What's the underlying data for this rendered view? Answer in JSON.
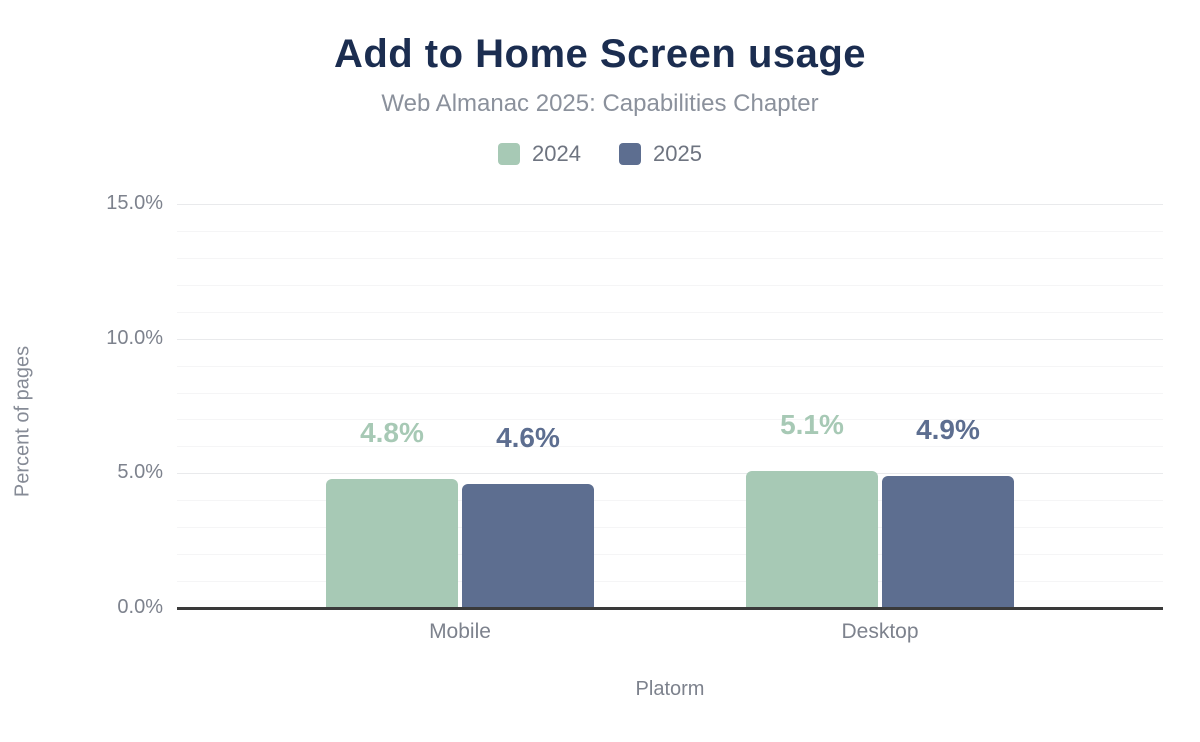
{
  "header": {
    "title": "Add to Home Screen usage",
    "subtitle": "Web Almanac 2025: Capabilities Chapter"
  },
  "colors": {
    "title": "#1b2d50",
    "subtitle": "#8b919c",
    "axis_text": "#7d828d",
    "legend_text": "#6e7480",
    "series_2024": "#a7c9b5",
    "series_2025": "#5d6e90",
    "grid_minor": "#f5f5f6",
    "grid_major": "#e9eaec",
    "baseline": "#3a3a3a"
  },
  "chart_data": {
    "type": "bar",
    "title": "Add to Home Screen usage",
    "subtitle": "Web Almanac 2025: Capabilities Chapter",
    "categories": [
      "Mobile",
      "Desktop"
    ],
    "series": [
      {
        "name": "2024",
        "color": "#a7c9b5",
        "values": [
          4.8,
          5.1
        ],
        "labels": [
          "4.8%",
          "5.1%"
        ]
      },
      {
        "name": "2025",
        "color": "#5d6e90",
        "values": [
          4.6,
          4.9
        ],
        "labels": [
          "4.6%",
          "4.9%"
        ]
      }
    ],
    "xlabel": "Platorm",
    "ylabel": "Percent of pages",
    "ylim": [
      0,
      15
    ],
    "yticks": [
      {
        "value": 0,
        "label": "0.0%"
      },
      {
        "value": 5,
        "label": "5.0%"
      },
      {
        "value": 10,
        "label": "10.0%"
      },
      {
        "value": 15,
        "label": "15.0%"
      }
    ],
    "grid": "horizontal minor lines every 1%, major lines every 5%",
    "legend_position": "top-center"
  }
}
